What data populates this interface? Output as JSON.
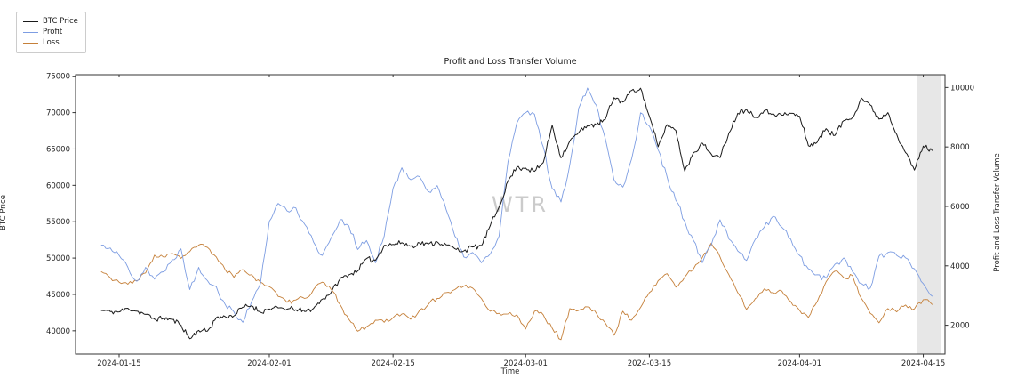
{
  "figure": {
    "title": "Profit and Loss Transfer Volume",
    "watermark": "WTR",
    "xlabel": "Time",
    "ylabel_left": "BTC Price",
    "ylabel_right": "Profit and Loss Transfer Volume"
  },
  "legend": {
    "items": [
      {
        "label": "BTC Price",
        "color": "#1a1a1a"
      },
      {
        "label": "Profit",
        "color": "#7d9de2"
      },
      {
        "label": "Loss",
        "color": "#c5803a"
      }
    ]
  },
  "chart_data": {
    "type": "line",
    "title": "Profit and Loss Transfer Volume",
    "xlabel": "Time",
    "ylabel_left": "BTC Price",
    "ylabel_right": "Profit and Loss Transfer Volume",
    "grid": false,
    "legend_position": "upper-left-outside",
    "x_unit": "date (days relative to 2024-01-15)",
    "xlim_days": [
      -4.93,
      93.46
    ],
    "ylim_left": [
      36800,
      75210
    ],
    "ylim_right": [
      1030,
      10430
    ],
    "yticks_left": [
      40000,
      45000,
      50000,
      55000,
      60000,
      65000,
      70000,
      75000
    ],
    "yticks_right": [
      2000,
      4000,
      6000,
      8000,
      10000
    ],
    "xticks": [
      {
        "label": "2024-01-15",
        "day": 0
      },
      {
        "label": "2024-02-01",
        "day": 17
      },
      {
        "label": "2024-02-15",
        "day": 31
      },
      {
        "label": "2024-03-01",
        "day": 46
      },
      {
        "label": "2024-03-15",
        "day": 60
      },
      {
        "label": "2024-04-01",
        "day": 77
      },
      {
        "label": "2024-04-15",
        "day": 91
      }
    ],
    "highlight_band": {
      "from_day": 90.25,
      "to_day": 92.96,
      "color": "#cfcfcf",
      "opacity": 0.5
    },
    "series": [
      {
        "name": "Loss",
        "axis": "right",
        "color": "#c5803a",
        "line_width": 0.9,
        "start_date": "2024-01-13",
        "start_day": -2,
        "step_days": 1,
        "jitter_amp": 90,
        "jitter_segments": 4,
        "jitter_seed": 33,
        "values": [
          3800,
          3600,
          3450,
          3380,
          3500,
          3760,
          4360,
          4300,
          4420,
          4250,
          4480,
          4700,
          4620,
          4300,
          3870,
          3610,
          3870,
          3700,
          3450,
          3300,
          2970,
          2770,
          2850,
          2900,
          3200,
          3450,
          3200,
          2700,
          2200,
          1800,
          1950,
          2170,
          2100,
          2250,
          2380,
          2200,
          2500,
          2700,
          2900,
          3100,
          3200,
          3310,
          3250,
          2900,
          2470,
          2400,
          2380,
          2350,
          1870,
          2470,
          2350,
          1900,
          1515,
          2560,
          2500,
          2620,
          2400,
          2080,
          1665,
          2470,
          2170,
          2600,
          3100,
          3500,
          3735,
          3280,
          3620,
          3900,
          4280,
          4760,
          4300,
          3700,
          3100,
          2530,
          2900,
          3220,
          3100,
          3150,
          2800,
          2500,
          2260,
          2800,
          3460,
          3820,
          3600,
          3670,
          2900,
          2400,
          2080,
          2560,
          2450,
          2680,
          2550,
          2860,
          2700
        ]
      },
      {
        "name": "Profit",
        "axis": "right",
        "color": "#7d9de2",
        "line_width": 0.9,
        "start_date": "2024-01-13",
        "start_day": -2,
        "step_days": 1,
        "jitter_amp": 120,
        "jitter_segments": 4,
        "jitter_seed": 22,
        "values": [
          4700,
          4600,
          4350,
          3950,
          3480,
          3950,
          3550,
          3800,
          4200,
          4570,
          3200,
          3950,
          3500,
          3300,
          2700,
          2450,
          2100,
          2800,
          3400,
          5500,
          6100,
          5850,
          5950,
          5400,
          4800,
          4350,
          4950,
          5550,
          5350,
          4550,
          4850,
          4100,
          5000,
          6600,
          7300,
          6900,
          7000,
          6500,
          6700,
          5900,
          5000,
          4300,
          4450,
          4100,
          4400,
          5000,
          7500,
          8800,
          9150,
          9100,
          8000,
          6600,
          6150,
          7400,
          9300,
          9980,
          9400,
          8300,
          6900,
          6650,
          7600,
          9150,
          8700,
          7900,
          7000,
          6200,
          5500,
          4850,
          4100,
          4700,
          5550,
          4900,
          4500,
          4180,
          4900,
          5300,
          5670,
          5300,
          4900,
          4350,
          3900,
          3700,
          3580,
          4050,
          4265,
          3800,
          3400,
          3250,
          4325,
          4450,
          4350,
          4265,
          3900,
          3400,
          2980
        ]
      },
      {
        "name": "BTC Price",
        "axis": "left",
        "color": "#1a1a1a",
        "line_width": 1.0,
        "start_date": "2024-01-13",
        "start_day": -2,
        "step_days": 1,
        "jitter_amp": 420,
        "jitter_segments": 6,
        "jitter_seed": 11,
        "values": [
          42800,
          42650,
          42600,
          43100,
          42700,
          42250,
          41600,
          41700,
          41550,
          40800,
          38900,
          40050,
          39950,
          41800,
          41950,
          42050,
          43250,
          43450,
          42550,
          43000,
          43150,
          42980,
          42900,
          42650,
          43080,
          44350,
          45280,
          47120,
          47700,
          48250,
          49920,
          49680,
          51750,
          51880,
          52120,
          51620,
          52080,
          51920,
          52230,
          51830,
          51280,
          50980,
          51530,
          51680,
          54480,
          57020,
          60580,
          62480,
          62380,
          61930,
          63130,
          68280,
          63780,
          66100,
          67250,
          68250,
          68300,
          69050,
          72050,
          71450,
          73050,
          73350,
          69500,
          65300,
          68350,
          67550,
          61950,
          64500,
          65800,
          64300,
          63800,
          67200,
          69900,
          70450,
          69350,
          70250,
          69850,
          69650,
          69900,
          69500,
          65450,
          65950,
          67800,
          66850,
          68900,
          69350,
          72000,
          71050,
          69100,
          70000,
          67000,
          64500,
          62100,
          65400,
          64800
        ]
      }
    ]
  }
}
